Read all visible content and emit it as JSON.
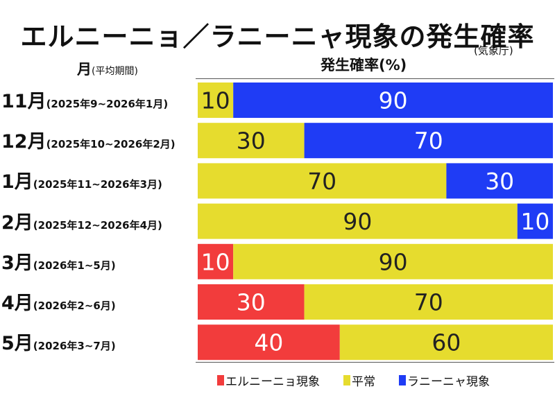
{
  "chart_data": {
    "type": "bar",
    "orientation": "horizontal",
    "stacked": true,
    "title": "エルニーニョ／ラニーニャ現象の発生確率",
    "source": "(気象庁)",
    "xlabel": "発生確率(%)",
    "ylabel": "月",
    "ylabel_sub": "(平均期間)",
    "xlim": [
      0,
      100
    ],
    "grid": false,
    "legend_position": "bottom",
    "categories": [
      {
        "month": "11月",
        "period": "(2025年9~2026年1月)"
      },
      {
        "month": "12月",
        "period": "(2025年10~2026年2月)"
      },
      {
        "month": "1月",
        "period": "(2025年11~2026年3月)"
      },
      {
        "month": "2月",
        "period": "(2025年12~2026年4月)"
      },
      {
        "month": "3月",
        "period": "(2026年1~5月)"
      },
      {
        "month": "4月",
        "period": "(2026年2~6月)"
      },
      {
        "month": "5月",
        "period": "(2026年3~7月)"
      }
    ],
    "series": [
      {
        "name": "エルニーニョ現象",
        "color": "#f23c3c",
        "label_color": "#ffffff",
        "values": [
          0,
          0,
          0,
          0,
          10,
          30,
          40
        ]
      },
      {
        "name": "平常",
        "color": "#e6dc2e",
        "label_color": "#222222",
        "values": [
          10,
          30,
          70,
          90,
          90,
          70,
          60
        ]
      },
      {
        "name": "ラニーニャ現象",
        "color": "#1f3cf5",
        "label_color": "#ffffff",
        "values": [
          90,
          70,
          30,
          10,
          0,
          0,
          0
        ]
      }
    ]
  }
}
